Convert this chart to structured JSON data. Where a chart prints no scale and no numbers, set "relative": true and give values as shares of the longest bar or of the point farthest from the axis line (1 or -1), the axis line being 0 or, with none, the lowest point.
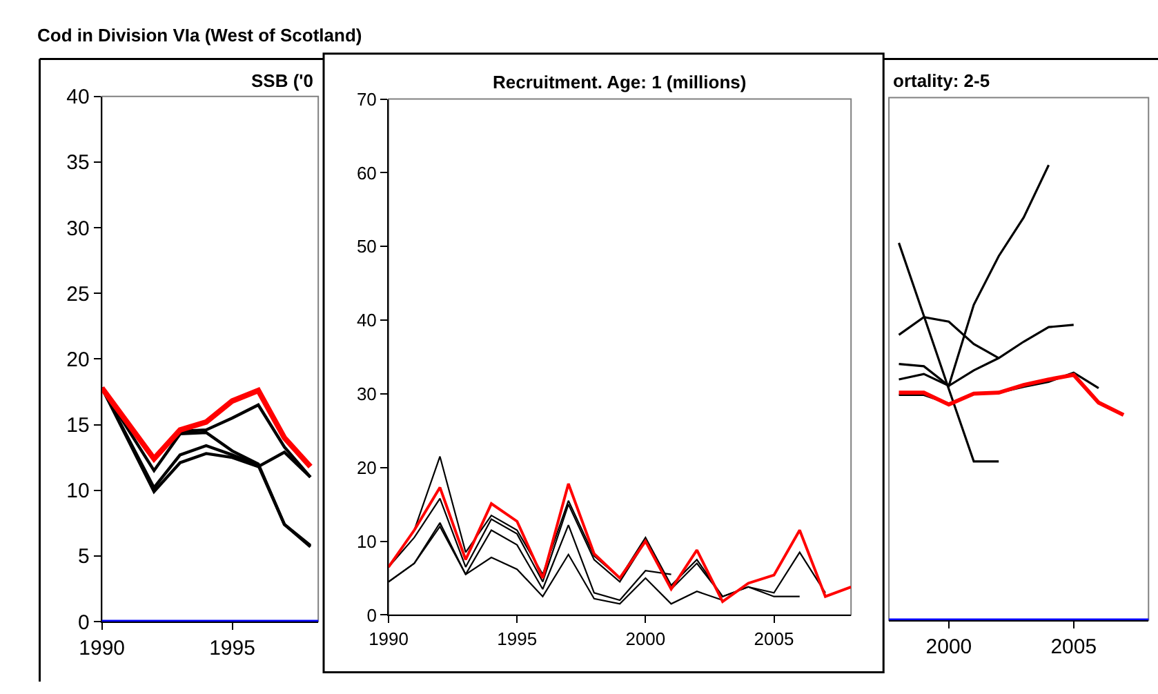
{
  "chart_data": [
    {
      "type": "line",
      "title": "SSB ('0",
      "annotations": [
        "Cod in Division VIa (West of Scotland)"
      ],
      "xlim": [
        1990,
        1998.3
      ],
      "xticks": [
        1990,
        1995
      ],
      "ylim": [
        0,
        40
      ],
      "yticks": [
        0,
        5,
        10,
        15,
        20,
        25,
        30,
        35,
        40
      ],
      "grid": false,
      "marker": "none",
      "line_style": "solid",
      "ref_lines": [
        {
          "axis": "y",
          "value": 0,
          "color": "#0000ff"
        }
      ],
      "series": [
        {
          "color": "#000000",
          "x": [
            1990,
            1992,
            1993,
            1994,
            1995,
            1996,
            1997,
            1998
          ],
          "values": [
            17.8,
            9.9,
            12.1,
            12.8,
            12.5,
            11.8,
            12.9,
            11
          ]
        },
        {
          "color": "#000000",
          "x": [
            1990,
            1992,
            1993,
            1994,
            1995,
            1996,
            1997,
            1998
          ],
          "values": [
            17.8,
            10.2,
            12.7,
            13.4,
            12.7,
            11.9,
            7.4,
            5.7
          ]
        },
        {
          "color": "#000000",
          "x": [
            1990,
            1992,
            1993,
            1994,
            1995,
            1996,
            1997,
            1998
          ],
          "values": [
            17.8,
            11.5,
            14.3,
            14.4,
            13,
            12,
            7.4,
            5.8
          ]
        },
        {
          "color": "#000000",
          "x": [
            1990,
            1992,
            1993,
            1994,
            1995,
            1996,
            1997,
            1998
          ],
          "values": [
            17.8,
            12.5,
            14.5,
            14.6,
            15.5,
            16.5,
            13.3,
            11
          ]
        },
        {
          "color": "#ff0000",
          "x": [
            1990,
            1992,
            1993,
            1994,
            1995,
            1996,
            1997,
            1998
          ],
          "values": [
            17.8,
            12.4,
            14.6,
            15.2,
            16.8,
            17.6,
            14,
            11.8
          ]
        }
      ]
    },
    {
      "type": "line",
      "title": "Recruitment. Age: 1 (millions)",
      "xlim": [
        1990,
        2008
      ],
      "xticks": [
        1990,
        1995,
        2000,
        2005
      ],
      "ylim": [
        0,
        70
      ],
      "yticks": [
        0,
        10,
        20,
        30,
        40,
        50,
        60,
        70
      ],
      "grid": false,
      "marker": "none",
      "line_style": "solid",
      "series": [
        {
          "color": "#000000",
          "x": [
            1990,
            1991,
            1992,
            1993,
            1994,
            1995,
            1996,
            1997,
            1998,
            1999,
            2000,
            2001,
            2002,
            2003
          ],
          "values": [
            4.5,
            7,
            12,
            5.5,
            7.8,
            6.2,
            2.5,
            8.2,
            2.2,
            1.5,
            5,
            1.5,
            3.2,
            2
          ]
        },
        {
          "color": "#000000",
          "x": [
            1990,
            1991,
            1992,
            1993,
            1994,
            1995,
            1996,
            1997,
            1998,
            1999,
            2000,
            2001
          ],
          "values": [
            4.5,
            7,
            12.5,
            5.5,
            11.5,
            9.5,
            3.5,
            12.2,
            3,
            2,
            6,
            5.5
          ]
        },
        {
          "color": "#000000",
          "x": [
            1990,
            1991,
            1992,
            1993,
            1994,
            1995,
            1996,
            1997,
            1998,
            1999,
            2000,
            2001,
            2002,
            2003,
            2004,
            2005,
            2006
          ],
          "values": [
            6.5,
            10.5,
            15.8,
            6.5,
            13,
            11,
            4.5,
            15,
            7.5,
            4.5,
            10,
            3.5,
            7,
            2.5,
            3.8,
            2.5,
            2.5
          ]
        },
        {
          "color": "#000000",
          "x": [
            1990,
            1991,
            1992,
            1993,
            1994,
            1995,
            1996,
            1997,
            1998,
            1999,
            2000,
            2001,
            2002,
            2003,
            2004,
            2005,
            2006,
            2007
          ],
          "values": [
            6.5,
            11.5,
            21.5,
            8.5,
            13.5,
            11.5,
            5.5,
            15.5,
            8,
            5,
            10.5,
            4,
            7.5,
            2.5,
            3.8,
            3,
            8.5,
            3
          ]
        },
        {
          "color": "#ff0000",
          "x": [
            1990,
            1991,
            1992,
            1993,
            1994,
            1995,
            1996,
            1997,
            1998,
            1999,
            2000,
            2001,
            2002,
            2003,
            2004,
            2005,
            2006,
            2007,
            2008
          ],
          "values": [
            6.5,
            11.5,
            17.3,
            7.5,
            15.1,
            12.7,
            5,
            17.8,
            8.3,
            5,
            10,
            3.5,
            8.8,
            1.8,
            4.3,
            5.4,
            11.5,
            2.5,
            3.8
          ]
        }
      ]
    },
    {
      "type": "line",
      "title": "ortality: 2-5",
      "relative": true,
      "tick_labels": "x",
      "xlim": [
        1997.6,
        2008
      ],
      "xticks": [
        2000,
        2005
      ],
      "grid": false,
      "marker": "none",
      "line_style": "solid",
      "ref_lines": [
        {
          "axis": "y",
          "value": 0,
          "color": "#0000ff"
        }
      ],
      "series": [
        {
          "color": "#000000",
          "x": [
            1998,
            1999,
            2000,
            2001,
            2002
          ],
          "values": [
            0.829,
            0.669,
            0.508,
            0.349,
            0.349
          ]
        },
        {
          "color": "#000000",
          "x": [
            1998,
            1999,
            2000,
            2001,
            2002
          ],
          "values": [
            0.627,
            0.666,
            0.656,
            0.607,
            0.576
          ]
        },
        {
          "color": "#000000",
          "x": [
            1998,
            1999,
            2000,
            2001,
            2002,
            2003,
            2004
          ],
          "values": [
            0.563,
            0.558,
            0.515,
            0.693,
            0.8,
            0.885,
            1
          ]
        },
        {
          "color": "#000000",
          "x": [
            1998,
            1999,
            2000,
            2001,
            2002,
            2003,
            2004,
            2005
          ],
          "values": [
            0.529,
            0.541,
            0.515,
            0.549,
            0.576,
            0.612,
            0.644,
            0.649
          ]
        },
        {
          "color": "#000000",
          "x": [
            1998,
            1999,
            2000,
            2001,
            2002,
            2003,
            2004,
            2005,
            2006
          ],
          "values": [
            0.495,
            0.495,
            0.476,
            0.498,
            0.5,
            0.513,
            0.524,
            0.544,
            0.51
          ]
        },
        {
          "color": "#ff0000",
          "x": [
            1998,
            1999,
            2000,
            2001,
            2002,
            2003,
            2004,
            2005,
            2006,
            2007
          ],
          "values": [
            0.5,
            0.5,
            0.474,
            0.498,
            0.5,
            0.517,
            0.529,
            0.539,
            0.478,
            0.451
          ]
        }
      ]
    }
  ]
}
